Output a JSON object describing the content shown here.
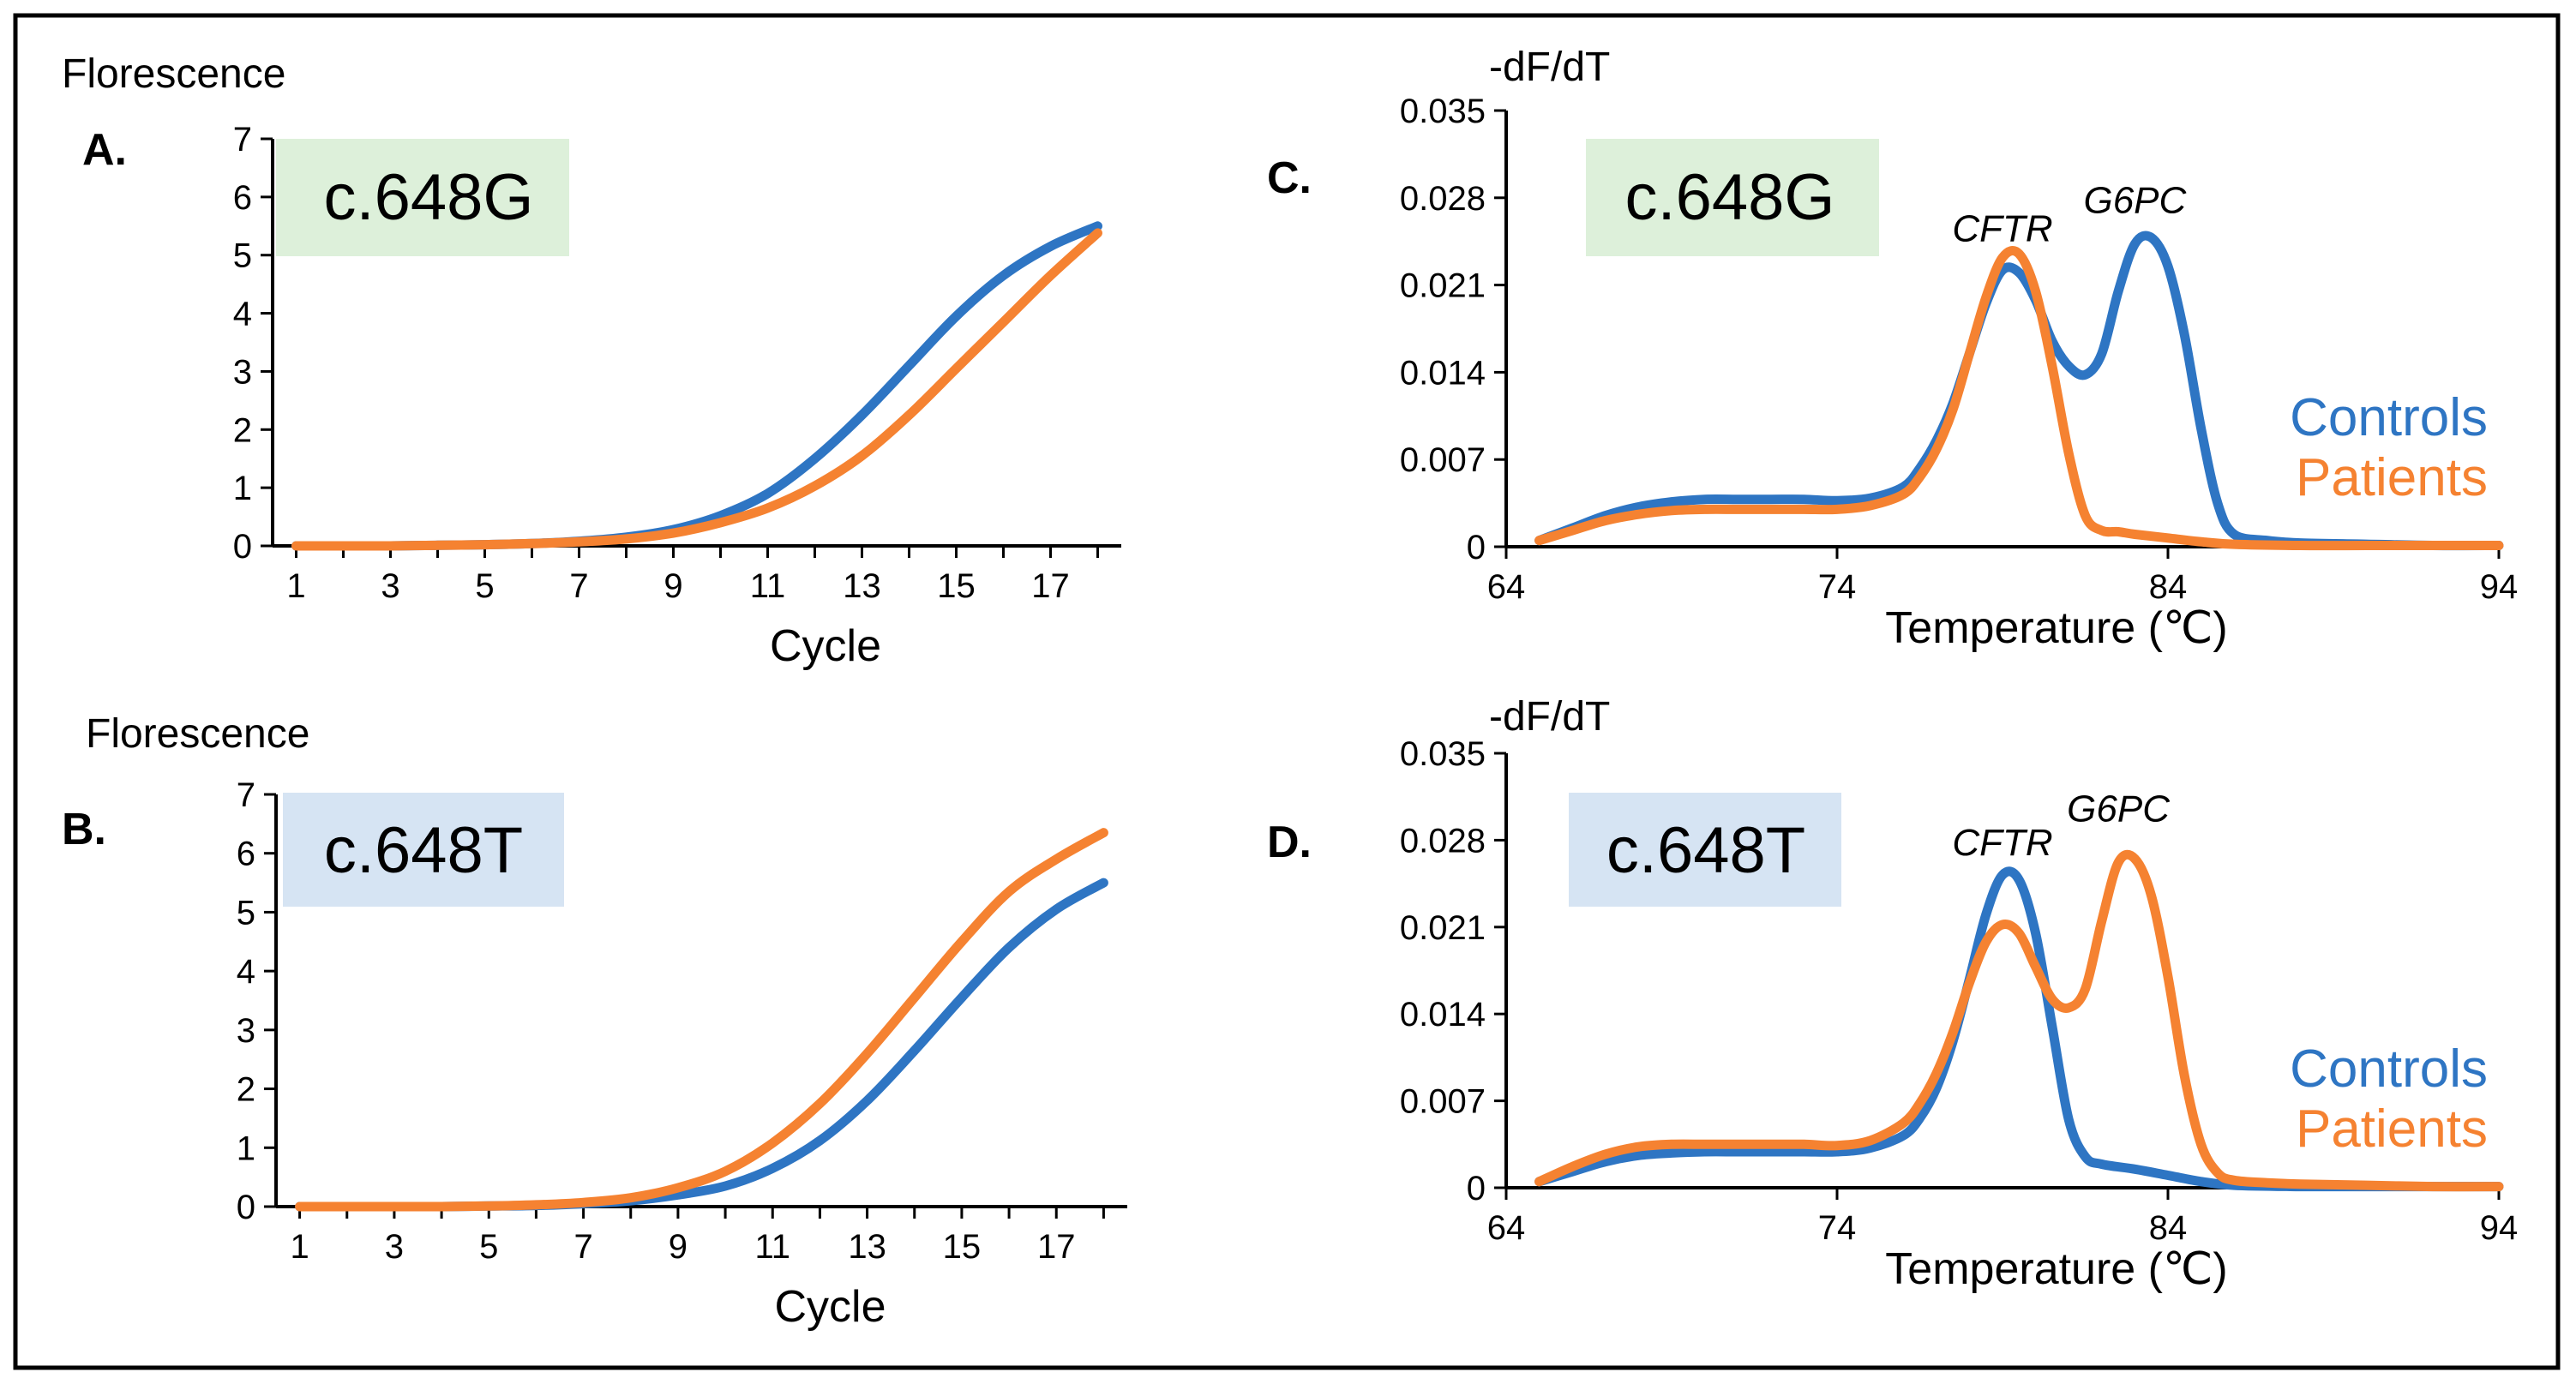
{
  "colors": {
    "controls": "#2E75C3",
    "patients": "#F58231",
    "label_g_bg": "#DDF0DA",
    "label_t_bg": "#D6E4F3",
    "axis": "#000000"
  },
  "chart_data": [
    {
      "id": "A",
      "type": "line",
      "panel_letter": "A.",
      "allele_label": "c.648G",
      "ylabel": "Florescence",
      "xlabel": "Cycle",
      "xlim": [
        0.5,
        18.5
      ],
      "ylim": [
        0,
        7
      ],
      "xticks": [
        "1",
        "3",
        "5",
        "7",
        "9",
        "11",
        "13",
        "15",
        "17"
      ],
      "yticks": [
        "0",
        "1",
        "2",
        "3",
        "4",
        "5",
        "6",
        "7"
      ],
      "series": [
        {
          "name": "Controls",
          "color": "#2E75C3",
          "x": [
            1,
            2,
            3,
            4,
            5,
            6,
            7,
            8,
            9,
            10,
            11,
            12,
            13,
            14,
            15,
            16,
            17,
            18
          ],
          "y": [
            0,
            0,
            0,
            0.01,
            0.02,
            0.04,
            0.08,
            0.15,
            0.28,
            0.52,
            0.9,
            1.5,
            2.25,
            3.1,
            3.95,
            4.65,
            5.15,
            5.5
          ]
        },
        {
          "name": "Patients",
          "color": "#F58231",
          "x": [
            1,
            2,
            3,
            4,
            5,
            6,
            7,
            8,
            9,
            10,
            11,
            12,
            13,
            14,
            15,
            16,
            17,
            18
          ],
          "y": [
            0,
            0,
            0,
            0.01,
            0.02,
            0.04,
            0.07,
            0.12,
            0.22,
            0.4,
            0.65,
            1.03,
            1.55,
            2.25,
            3.05,
            3.85,
            4.65,
            5.38
          ]
        }
      ]
    },
    {
      "id": "B",
      "type": "line",
      "panel_letter": "B.",
      "allele_label": "c.648T",
      "ylabel": "Florescence",
      "xlabel": "Cycle",
      "xlim": [
        0.5,
        18.5
      ],
      "ylim": [
        0,
        7
      ],
      "xticks": [
        "1",
        "3",
        "5",
        "7",
        "9",
        "11",
        "13",
        "15",
        "17"
      ],
      "yticks": [
        "0",
        "1",
        "2",
        "3",
        "4",
        "5",
        "6",
        "7"
      ],
      "series": [
        {
          "name": "Controls",
          "color": "#2E75C3",
          "x": [
            1,
            2,
            3,
            4,
            5,
            6,
            7,
            8,
            9,
            10,
            11,
            12,
            13,
            14,
            15,
            16,
            17,
            18
          ],
          "y": [
            0,
            0,
            0,
            0,
            0.01,
            0.02,
            0.05,
            0.1,
            0.2,
            0.35,
            0.65,
            1.12,
            1.8,
            2.65,
            3.55,
            4.4,
            5.05,
            5.5
          ]
        },
        {
          "name": "Patients",
          "color": "#F58231",
          "x": [
            1,
            2,
            3,
            4,
            5,
            6,
            7,
            8,
            9,
            10,
            11,
            12,
            13,
            14,
            15,
            16,
            17,
            18
          ],
          "y": [
            0,
            0,
            0,
            0,
            0.01,
            0.03,
            0.07,
            0.15,
            0.32,
            0.6,
            1.08,
            1.75,
            2.6,
            3.55,
            4.5,
            5.35,
            5.9,
            6.35
          ]
        }
      ]
    },
    {
      "id": "C",
      "type": "line",
      "panel_letter": "C.",
      "allele_label": "c.648G",
      "ylabel": "-dF/dT",
      "xlabel": "Temperature (℃)",
      "xlim": [
        64,
        94
      ],
      "ylim": [
        0,
        0.035
      ],
      "xticks": [
        "64",
        "74",
        "84",
        "94"
      ],
      "yticks": [
        "0",
        "0.007",
        "0.014",
        "0.021",
        "0.028",
        "0.035"
      ],
      "legend": [
        "Controls",
        "Patients"
      ],
      "annotations": [
        {
          "text": "CFTR",
          "x": 79.0,
          "y": 0.0245
        },
        {
          "text": "G6PC",
          "x": 83.0,
          "y": 0.0268
        }
      ],
      "series": [
        {
          "name": "Controls",
          "color": "#2E75C3",
          "x": [
            65,
            66,
            67,
            68,
            69,
            70,
            71,
            72,
            73,
            74,
            75,
            76,
            76.5,
            77,
            77.5,
            78,
            78.5,
            79,
            79.5,
            80,
            80.5,
            81,
            81.5,
            82,
            82.5,
            83,
            83.5,
            84,
            84.5,
            85,
            85.5,
            86,
            87,
            88,
            90,
            92,
            94
          ],
          "y": [
            0.0005,
            0.0015,
            0.0025,
            0.0032,
            0.0036,
            0.0038,
            0.0038,
            0.0038,
            0.0038,
            0.0037,
            0.0039,
            0.0048,
            0.0063,
            0.0085,
            0.0115,
            0.0155,
            0.0195,
            0.0222,
            0.022,
            0.0198,
            0.0165,
            0.0145,
            0.0138,
            0.0155,
            0.0205,
            0.0243,
            0.0248,
            0.0225,
            0.017,
            0.0095,
            0.0035,
            0.001,
            0.0005,
            0.0003,
            0.0002,
            0.0001,
            0.0001
          ]
        },
        {
          "name": "Patients",
          "color": "#F58231",
          "x": [
            65,
            66,
            67,
            68,
            69,
            70,
            71,
            72,
            73,
            74,
            75,
            76,
            76.5,
            77,
            77.5,
            78,
            78.5,
            79,
            79.5,
            80,
            80.5,
            81,
            81.5,
            82,
            82.5,
            83,
            84,
            85,
            86,
            88,
            90,
            92,
            94
          ],
          "y": [
            0.0005,
            0.0013,
            0.0021,
            0.0026,
            0.0029,
            0.003,
            0.003,
            0.003,
            0.003,
            0.003,
            0.0033,
            0.0042,
            0.0056,
            0.0078,
            0.011,
            0.0155,
            0.02,
            0.0232,
            0.0235,
            0.0205,
            0.0145,
            0.0075,
            0.0025,
            0.0013,
            0.0012,
            0.001,
            0.0007,
            0.0004,
            0.0002,
            0.0001,
            0.0001,
            0.0001,
            0.0001
          ]
        }
      ]
    },
    {
      "id": "D",
      "type": "line",
      "panel_letter": "D.",
      "allele_label": "c.648T",
      "ylabel": "-dF/dT",
      "xlabel": "Temperature (℃)",
      "xlim": [
        64,
        94
      ],
      "ylim": [
        0,
        0.035
      ],
      "xticks": [
        "64",
        "74",
        "84",
        "94"
      ],
      "yticks": [
        "0",
        "0.007",
        "0.014",
        "0.021",
        "0.028",
        "0.035"
      ],
      "legend": [
        "Controls",
        "Patients"
      ],
      "annotations": [
        {
          "text": "CFTR",
          "x": 79.0,
          "y": 0.0268
        },
        {
          "text": "G6PC",
          "x": 82.5,
          "y": 0.0295
        }
      ],
      "series": [
        {
          "name": "Controls",
          "color": "#2E75C3",
          "x": [
            65,
            66,
            67,
            68,
            69,
            70,
            71,
            72,
            73,
            74,
            75,
            76,
            76.5,
            77,
            77.5,
            78,
            78.5,
            79,
            79.5,
            80,
            80.5,
            81,
            81.5,
            82,
            83,
            84,
            85,
            86,
            88,
            90,
            92,
            94
          ],
          "y": [
            0.0005,
            0.0013,
            0.0021,
            0.0026,
            0.0028,
            0.0029,
            0.0029,
            0.0029,
            0.0029,
            0.0029,
            0.0032,
            0.0042,
            0.0056,
            0.008,
            0.0118,
            0.0168,
            0.022,
            0.0252,
            0.0248,
            0.0205,
            0.013,
            0.0055,
            0.0025,
            0.0019,
            0.0015,
            0.001,
            0.0005,
            0.0002,
            0.0001,
            0.0001,
            0.0001,
            0.0001
          ]
        },
        {
          "name": "Patients",
          "color": "#F58231",
          "x": [
            65,
            66,
            67,
            68,
            69,
            70,
            71,
            72,
            73,
            74,
            75,
            76,
            76.5,
            77,
            77.5,
            78,
            78.5,
            79,
            79.5,
            80,
            80.5,
            81,
            81.5,
            82,
            82.5,
            83,
            83.5,
            84,
            84.5,
            85,
            85.5,
            86,
            87,
            88,
            90,
            92,
            94
          ],
          "y": [
            0.0005,
            0.0017,
            0.0027,
            0.0033,
            0.0035,
            0.0035,
            0.0035,
            0.0035,
            0.0035,
            0.0034,
            0.0038,
            0.0052,
            0.0068,
            0.0092,
            0.0125,
            0.0165,
            0.0198,
            0.0212,
            0.0205,
            0.0178,
            0.0152,
            0.0145,
            0.016,
            0.0215,
            0.0262,
            0.0265,
            0.0235,
            0.017,
            0.009,
            0.0035,
            0.0012,
            0.0006,
            0.0004,
            0.0003,
            0.0002,
            0.0001,
            0.0001
          ]
        }
      ]
    }
  ]
}
